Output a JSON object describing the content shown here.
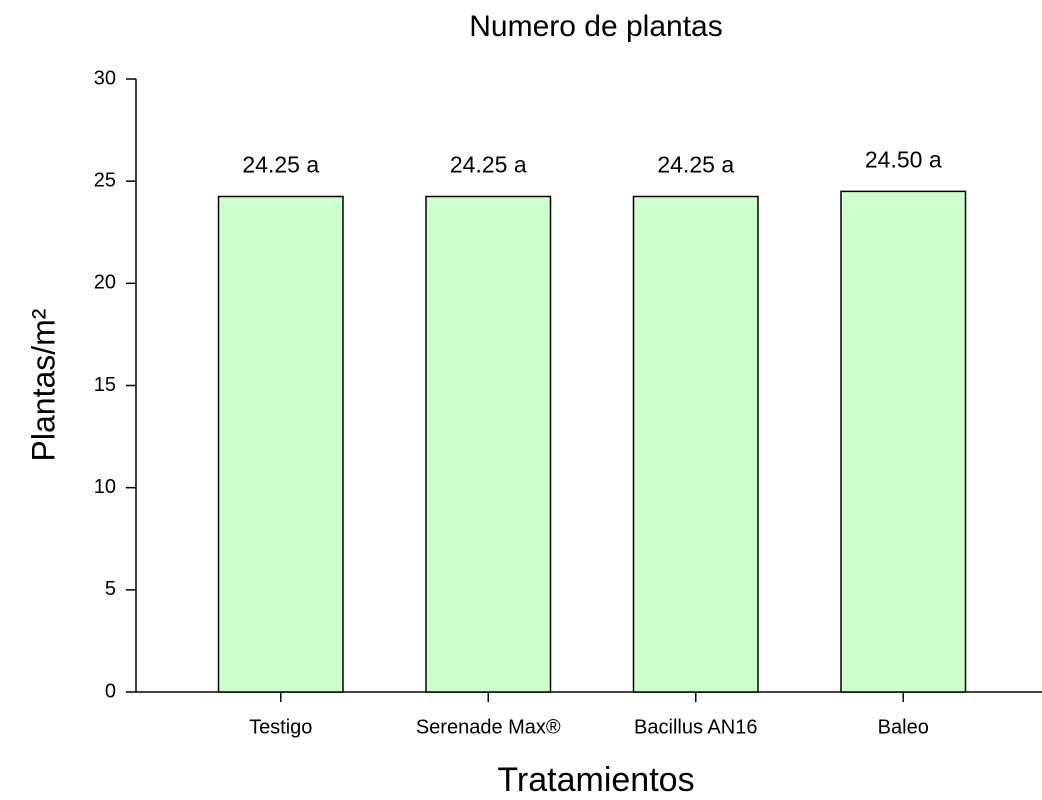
{
  "chart_data": {
    "type": "bar",
    "title": "Numero de plantas",
    "categories": [
      "Testigo",
      "Serenade Max®",
      "Bacillus AN16",
      "Baleo"
    ],
    "values": [
      24.25,
      24.25,
      24.25,
      24.5
    ],
    "value_labels": [
      "24.25 a",
      "24.25 a",
      "24.25 a",
      "24.50 a"
    ],
    "color": "#ccffcc",
    "xlabel": "Tratamientos",
    "ylabel": "Plantas/m²",
    "ylim": [
      0,
      30
    ],
    "yticks": [
      0,
      5,
      10,
      15,
      20,
      25,
      30
    ],
    "grid": false
  }
}
